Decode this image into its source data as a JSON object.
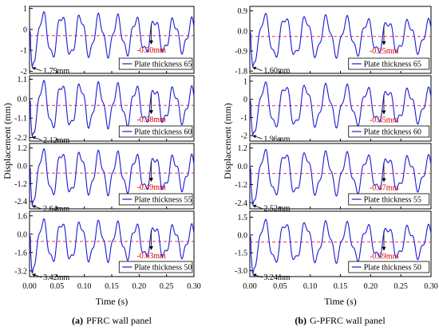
{
  "chart_data": [
    {
      "type": "line",
      "caption_letter": "(a)",
      "caption_text": "PFRC wall panel",
      "ylabel": "Displacement (mm)",
      "xlabel": "Time (s)",
      "xlim": [
        0,
        0.3
      ],
      "x_ticks": [
        "0.00",
        "0.05",
        "0.10",
        "0.15",
        "0.20",
        "0.25",
        "0.30"
      ],
      "panels": [
        {
          "legend": "Plate thickness 65",
          "peak_label": "1.79mm",
          "residual_label": "-0.30mm",
          "peak": -1.79,
          "residual": -0.3,
          "ylim": [
            -2.1,
            1.1
          ],
          "y_ticks": [
            {
              "v": 1,
              "t": "1"
            },
            {
              "v": 0,
              "t": "0"
            },
            {
              "v": -1,
              "t": "-1"
            },
            {
              "v": -2,
              "t": "-2"
            }
          ],
          "amp": 1.05,
          "ar": 0.28
        },
        {
          "legend": "Plate thickness 60",
          "peak_label": "2.12mm",
          "residual_label": "-0.38mm",
          "peak": -2.12,
          "residual": -0.38,
          "ylim": [
            -2.4,
            1.3
          ],
          "y_ticks": [
            {
              "v": 1.1,
              "t": "1.1"
            },
            {
              "v": 0,
              "t": "0.0"
            },
            {
              "v": -1.1,
              "t": "-1.1"
            },
            {
              "v": -2.2,
              "t": "-2.2"
            }
          ],
          "amp": 1.3,
          "ar": 0.3
        },
        {
          "legend": "Plate thickness 55",
          "peak_label": "2.64mm",
          "residual_label": "-0.49mm",
          "peak": -2.64,
          "residual": -0.49,
          "ylim": [
            -2.9,
            1.5
          ],
          "y_ticks": [
            {
              "v": 1.2,
              "t": "1.2"
            },
            {
              "v": 0,
              "t": "0.0"
            },
            {
              "v": -1.2,
              "t": "-1.2"
            },
            {
              "v": -2.4,
              "t": "-2.4"
            }
          ],
          "amp": 1.5,
          "ar": 0.35
        },
        {
          "legend": "Plate thickness 50",
          "peak_label": "3.42mm",
          "residual_label": "-0.63mm",
          "peak": -3.42,
          "residual": -0.63,
          "ylim": [
            -3.7,
            2.0
          ],
          "y_ticks": [
            {
              "v": 1.6,
              "t": "1.6"
            },
            {
              "v": 0,
              "t": "0.0"
            },
            {
              "v": -1.6,
              "t": "-1.6"
            },
            {
              "v": -3.2,
              "t": "-3.2"
            }
          ],
          "amp": 1.8,
          "ar": 0.4
        }
      ]
    },
    {
      "type": "line",
      "caption_letter": "(b)",
      "caption_text": "G-PFRC wall panel",
      "ylabel": "Displacement (mm)",
      "xlabel": "Time (s)",
      "xlim": [
        0,
        0.3
      ],
      "x_ticks": [
        "0.00",
        "0.05",
        "0.10",
        "0.15",
        "0.20",
        "0.25",
        "0.30"
      ],
      "panels": [
        {
          "legend": "Plate thickness 65",
          "peak_label": "1.60mm",
          "residual_label": "-0.25mm",
          "peak": -1.6,
          "residual": -0.25,
          "ylim": [
            -1.9,
            1.1
          ],
          "y_ticks": [
            {
              "v": 0.9,
              "t": "0.9"
            },
            {
              "v": 0,
              "t": "0.0"
            },
            {
              "v": -0.9,
              "t": "-0.9"
            },
            {
              "v": -1.8,
              "t": "-1.8"
            }
          ],
          "amp": 0.95,
          "ar": 0.25
        },
        {
          "legend": "Plate thickness 60",
          "peak_label": "1.96mm",
          "residual_label": "-0.35mm",
          "peak": -1.96,
          "residual": -0.35,
          "ylim": [
            -2.3,
            1.3
          ],
          "y_ticks": [
            {
              "v": 1,
              "t": "1"
            },
            {
              "v": 0,
              "t": "0"
            },
            {
              "v": -1,
              "t": "-1"
            },
            {
              "v": -2,
              "t": "-2"
            }
          ],
          "amp": 1.2,
          "ar": 0.3
        },
        {
          "legend": "Plate thickness 55",
          "peak_label": "2.52mm",
          "residual_label": "-0.47mm",
          "peak": -2.52,
          "residual": -0.47,
          "ylim": [
            -2.8,
            1.5
          ],
          "y_ticks": [
            {
              "v": 1.2,
              "t": "1.2"
            },
            {
              "v": 0,
              "t": "0.0"
            },
            {
              "v": -1.2,
              "t": "-1.2"
            },
            {
              "v": -2.4,
              "t": "-2.4"
            }
          ],
          "amp": 1.45,
          "ar": 0.34
        },
        {
          "legend": "Plate thickness 50",
          "peak_label": "3.24mm",
          "residual_label": "-0.59mm",
          "peak": -3.24,
          "residual": -0.59,
          "ylim": [
            -3.5,
            2.0
          ],
          "y_ticks": [
            {
              "v": 1.5,
              "t": "1.5"
            },
            {
              "v": 0,
              "t": "0.0"
            },
            {
              "v": -1.5,
              "t": "-1.5"
            },
            {
              "v": -3,
              "t": "-3.0"
            }
          ],
          "amp": 1.75,
          "ar": 0.38
        }
      ]
    }
  ],
  "colors": {
    "curve": "#1a1ad6",
    "residual_line": "#e0306a",
    "residual_text": "#d40000"
  }
}
